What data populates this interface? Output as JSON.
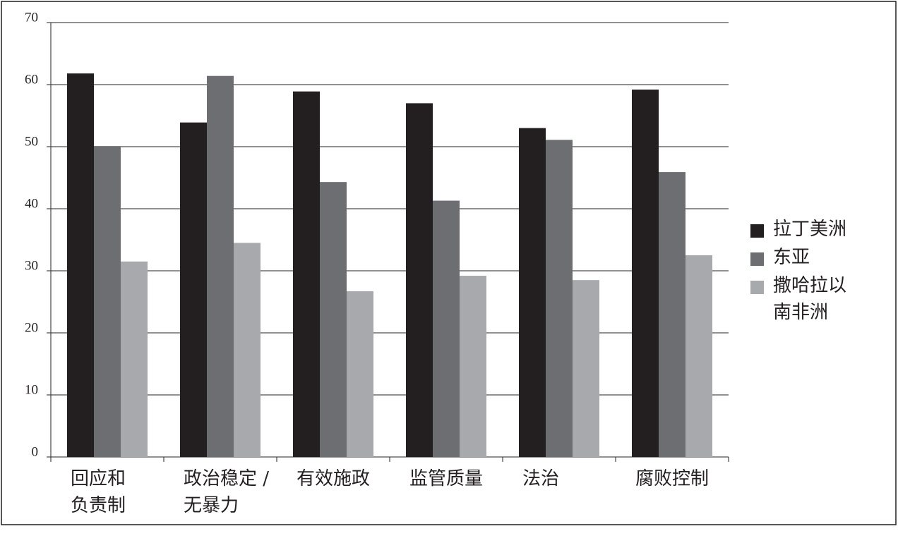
{
  "chart_data": {
    "type": "bar",
    "categories": [
      "回应和\n负责制",
      "政治稳定 /\n无暴力",
      "有效施政",
      "监管质量",
      "法治",
      "腐败控制"
    ],
    "series": [
      {
        "name": "拉丁美洲",
        "color": "#231f20",
        "values": [
          61.8,
          53.9,
          58.9,
          57.0,
          53.0,
          59.2
        ]
      },
      {
        "name": "东亚",
        "color": "#6d6e71",
        "values": [
          50.1,
          61.4,
          44.3,
          41.3,
          51.1,
          45.9
        ]
      },
      {
        "name": "撒哈拉以\n南非洲",
        "color": "#a7a9ac",
        "values": [
          31.5,
          34.5,
          26.7,
          29.2,
          28.5,
          32.5
        ]
      }
    ],
    "ylim": [
      0,
      70
    ],
    "yticks": [
      0,
      10,
      20,
      30,
      40,
      50,
      60,
      70
    ],
    "grid": true,
    "legend": "right"
  }
}
